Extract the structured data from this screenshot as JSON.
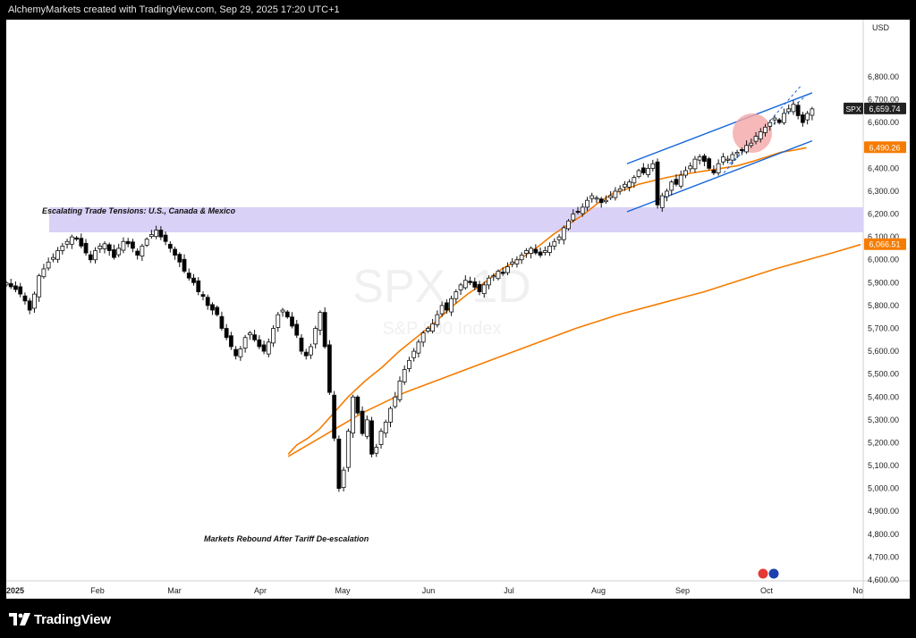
{
  "header": {
    "text": "AlchemyMarkets created with TradingView.com, Sep 29, 2025 17:20 UTC+1"
  },
  "footer": {
    "brand": "TradingView"
  },
  "watermark": {
    "symbol": "SPX, 1D",
    "name": "S&P 500 Index"
  },
  "colors": {
    "price_up": "#ffffff",
    "price_down": "#000000",
    "ma_short": "#f57c00",
    "ma_long": "#f57c00",
    "channel": "#1565d8",
    "zone": "#d8cff5",
    "highlight": "#f4a6a6"
  },
  "chart_data": {
    "type": "candlestick",
    "currency": "USD",
    "y_range": [
      4600,
      6800
    ],
    "y_ticks": [
      "6,800.00",
      "6,700.00",
      "6,600.00",
      "6,500.00",
      "6,400.00",
      "6,300.00",
      "6,200.00",
      "6,100.00",
      "6,000.00",
      "5,900.00",
      "5,800.00",
      "5,700.00",
      "5,600.00",
      "5,500.00",
      "5,400.00",
      "5,300.00",
      "5,200.00",
      "5,100.00",
      "5,000.00",
      "4,900.00",
      "4,800.00",
      "4,700.00",
      "4,600.00"
    ],
    "x_labels": [
      "2025",
      "Feb",
      "Mar",
      "Apr",
      "May",
      "Jun",
      "Jul",
      "Aug",
      "Sep",
      "Oct",
      "No"
    ],
    "price_labels": [
      {
        "name": "SPX",
        "value": "6,659.74",
        "price": 6659.74
      },
      {
        "name": "",
        "value": "6,490.26",
        "price": 6490.26
      },
      {
        "name": "",
        "value": "6,066.51",
        "price": 6066.51
      }
    ],
    "closes": [
      5900,
      5882,
      5870,
      5850,
      5820,
      5780,
      5850,
      5930,
      5960,
      5990,
      6010,
      6040,
      6060,
      6080,
      6100,
      6090,
      6060,
      6030,
      6000,
      6040,
      6060,
      6070,
      6040,
      6010,
      6050,
      6080,
      6070,
      6050,
      6020,
      6060,
      6090,
      6110,
      6130,
      6100,
      6080,
      6050,
      6020,
      5990,
      5950,
      5920,
      5900,
      5860,
      5840,
      5800,
      5780,
      5760,
      5700,
      5660,
      5620,
      5580,
      5610,
      5660,
      5680,
      5650,
      5620,
      5600,
      5640,
      5700,
      5760,
      5780,
      5750,
      5710,
      5670,
      5600,
      5580,
      5620,
      5700,
      5770,
      5620,
      5420,
      5220,
      5000,
      5080,
      5250,
      5400,
      5330,
      5240,
      5300,
      5150,
      5180,
      5250,
      5290,
      5350,
      5400,
      5470,
      5520,
      5560,
      5600,
      5640,
      5680,
      5700,
      5720,
      5760,
      5800,
      5780,
      5830,
      5860,
      5890,
      5910,
      5900,
      5880,
      5860,
      5890,
      5920,
      5930,
      5950,
      5940,
      5970,
      5990,
      6000,
      6020,
      6040,
      6050,
      6030,
      6020,
      6040,
      6060,
      6080,
      6100,
      6140,
      6170,
      6200,
      6210,
      6230,
      6260,
      6280,
      6270,
      6250,
      6260,
      6280,
      6300,
      6310,
      6330,
      6340,
      6360,
      6390,
      6380,
      6400,
      6420,
      6240,
      6280,
      6300,
      6340,
      6330,
      6370,
      6390,
      6410,
      6440,
      6450,
      6430,
      6400,
      6380,
      6420,
      6450,
      6440,
      6460,
      6470,
      6480,
      6500,
      6510,
      6540,
      6560,
      6580,
      6600,
      6620,
      6600,
      6640,
      6660,
      6680,
      6630,
      6600,
      6640,
      6659.74
    ],
    "series": [
      {
        "name": "",
        "role": "moving-average-short",
        "points": [
          [
            99,
            5150
          ],
          [
            102,
            5190
          ],
          [
            106,
            5220
          ],
          [
            110,
            5260
          ],
          [
            115,
            5330
          ],
          [
            120,
            5400
          ],
          [
            126,
            5470
          ],
          [
            132,
            5530
          ],
          [
            138,
            5600
          ],
          [
            144,
            5660
          ],
          [
            150,
            5720
          ],
          [
            156,
            5790
          ],
          [
            162,
            5850
          ],
          [
            168,
            5900
          ],
          [
            174,
            5960
          ],
          [
            180,
            6000
          ],
          [
            186,
            6050
          ],
          [
            192,
            6110
          ],
          [
            198,
            6160
          ],
          [
            203,
            6200
          ],
          [
            208,
            6250
          ],
          [
            213,
            6290
          ],
          [
            218,
            6310
          ],
          [
            222,
            6330
          ],
          [
            227,
            6345
          ],
          [
            232,
            6360
          ],
          [
            237,
            6372
          ],
          [
            242,
            6382
          ],
          [
            247,
            6392
          ],
          [
            252,
            6402
          ],
          [
            257,
            6412
          ],
          [
            262,
            6430
          ],
          [
            267,
            6450
          ],
          [
            272,
            6470
          ],
          [
            277,
            6480
          ],
          [
            281,
            6490.26
          ]
        ]
      },
      {
        "name": "",
        "role": "moving-average-long",
        "points": [
          [
            99,
            5140
          ],
          [
            110,
            5220
          ],
          [
            125,
            5330
          ],
          [
            140,
            5420
          ],
          [
            155,
            5490
          ],
          [
            170,
            5560
          ],
          [
            185,
            5630
          ],
          [
            200,
            5700
          ],
          [
            215,
            5760
          ],
          [
            230,
            5810
          ],
          [
            245,
            5860
          ],
          [
            260,
            5920
          ],
          [
            270,
            5960
          ],
          [
            280,
            5995
          ],
          [
            290,
            6030
          ],
          [
            300,
            6066.51
          ]
        ]
      }
    ],
    "annotations": [
      {
        "text": "Escalating Trade Tensions: U.S., Canada & Mexico",
        "zone": [
          6120,
          6230
        ]
      },
      {
        "text": "Markets Rebound After Tariff De-escalation"
      }
    ],
    "channel": {
      "upper": [
        [
          218,
          6420
        ],
        [
          283,
          6730
        ]
      ],
      "lower": [
        [
          218,
          6210
        ],
        [
          283,
          6520
        ]
      ]
    }
  }
}
